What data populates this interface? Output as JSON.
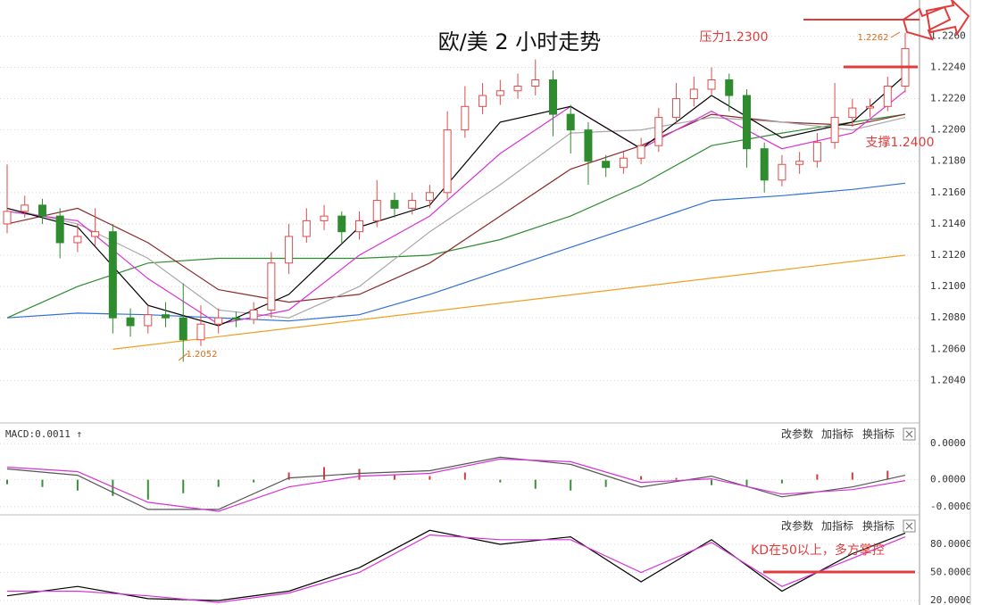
{
  "chart_data": [
    {
      "type": "candlestick",
      "title": "欧/美 2 小时走势",
      "open": [
        1.214,
        1.2148,
        1.2152,
        1.2145,
        1.2128,
        1.2132,
        1.2135,
        1.208,
        1.2075,
        1.2082,
        1.208,
        1.2066,
        1.2076,
        1.208,
        1.2079,
        1.2085,
        1.2115,
        1.2132,
        1.2142,
        1.2145,
        1.2135,
        1.2142,
        1.2155,
        1.215,
        1.2155,
        1.216,
        1.22,
        1.2215,
        1.2222,
        1.2225,
        1.2228,
        1.2232,
        1.221,
        1.22,
        1.218,
        1.2176,
        1.2182,
        1.219,
        1.2208,
        1.222,
        1.2226,
        1.2232,
        1.2222,
        1.2188,
        1.2168,
        1.2178,
        1.218,
        1.2192,
        1.2208,
        1.2214,
        1.2215,
        1.2228
      ],
      "high": [
        1.2178,
        1.2158,
        1.2156,
        1.215,
        1.214,
        1.215,
        1.214,
        1.2086,
        1.2088,
        1.209,
        1.2102,
        1.2088,
        1.2086,
        1.2084,
        1.209,
        1.2122,
        1.214,
        1.215,
        1.2152,
        1.2148,
        1.2148,
        1.2168,
        1.216,
        1.216,
        1.2165,
        1.2212,
        1.2228,
        1.223,
        1.2232,
        1.2236,
        1.2245,
        1.2238,
        1.2216,
        1.2205,
        1.2184,
        1.2186,
        1.2195,
        1.2214,
        1.223,
        1.2234,
        1.224,
        1.2236,
        1.2226,
        1.2192,
        1.2184,
        1.2186,
        1.2198,
        1.223,
        1.222,
        1.222,
        1.2234,
        1.2262
      ],
      "low": [
        1.2134,
        1.2144,
        1.214,
        1.2118,
        1.2122,
        1.2126,
        1.207,
        1.2068,
        1.207,
        1.2074,
        1.2052,
        1.2062,
        1.207,
        1.2074,
        1.2076,
        1.208,
        1.2108,
        1.2128,
        1.2136,
        1.2128,
        1.213,
        1.2138,
        1.2144,
        1.2146,
        1.215,
        1.2156,
        1.2195,
        1.221,
        1.2216,
        1.222,
        1.2222,
        1.2196,
        1.2185,
        1.2165,
        1.217,
        1.2172,
        1.2178,
        1.2186,
        1.2204,
        1.2215,
        1.2222,
        1.2212,
        1.2176,
        1.216,
        1.2164,
        1.2172,
        1.2176,
        1.2188,
        1.2202,
        1.2208,
        1.2212,
        1.2224
      ],
      "close": [
        1.2148,
        1.2152,
        1.2145,
        1.2128,
        1.2132,
        1.2135,
        1.208,
        1.2075,
        1.2082,
        1.208,
        1.2066,
        1.2076,
        1.208,
        1.2079,
        1.2085,
        1.2115,
        1.2132,
        1.2142,
        1.2145,
        1.2135,
        1.2142,
        1.2155,
        1.215,
        1.2155,
        1.216,
        1.22,
        1.2215,
        1.2222,
        1.2225,
        1.2228,
        1.2232,
        1.221,
        1.22,
        1.218,
        1.2176,
        1.2182,
        1.219,
        1.2208,
        1.222,
        1.2226,
        1.2232,
        1.2222,
        1.2188,
        1.2168,
        1.2178,
        1.218,
        1.2192,
        1.2208,
        1.2214,
        1.2215,
        1.2228,
        1.2252
      ],
      "up_color": "#e04a4a",
      "down_color": "#2e8b2e",
      "series": [
        {
          "color": "#f0a020",
          "x": [
            6,
            51
          ],
          "values": [
            1.206,
            1.212
          ]
        },
        {
          "color": "#2f6fd6",
          "x": [
            0,
            4,
            8,
            12,
            16,
            20,
            24,
            28,
            32,
            36,
            40,
            44,
            48,
            51
          ],
          "values": [
            1.208,
            1.2083,
            1.2082,
            1.208,
            1.2078,
            1.2082,
            1.2095,
            1.211,
            1.2125,
            1.214,
            1.2155,
            1.2158,
            1.2162,
            1.2166
          ]
        },
        {
          "color": "#2e8b2e",
          "x": [
            0,
            4,
            8,
            12,
            16,
            20,
            24,
            28,
            32,
            36,
            40,
            44,
            48,
            51
          ],
          "values": [
            1.208,
            1.21,
            1.2115,
            1.2118,
            1.2118,
            1.2118,
            1.212,
            1.213,
            1.2145,
            1.2165,
            1.219,
            1.2198,
            1.2205,
            1.221
          ]
        },
        {
          "color": "#8b2a2a",
          "x": [
            0,
            4,
            8,
            12,
            16,
            20,
            24,
            28,
            32,
            36,
            40,
            44,
            48,
            51
          ],
          "values": [
            1.214,
            1.215,
            1.2128,
            1.2098,
            1.209,
            1.2095,
            1.2115,
            1.2145,
            1.2175,
            1.219,
            1.221,
            1.2205,
            1.2203,
            1.221
          ]
        },
        {
          "color": "#a8a8a8",
          "x": [
            0,
            4,
            8,
            12,
            16,
            20,
            24,
            28,
            32,
            36,
            40,
            44,
            48,
            51
          ],
          "values": [
            1.215,
            1.214,
            1.2118,
            1.2085,
            1.208,
            1.21,
            1.2135,
            1.2165,
            1.2198,
            1.22,
            1.2208,
            1.2205,
            1.22,
            1.2208
          ]
        },
        {
          "color": "#d633d6",
          "x": [
            0,
            4,
            8,
            12,
            16,
            20,
            24,
            28,
            32,
            36,
            40,
            44,
            48,
            51
          ],
          "values": [
            1.2148,
            1.2142,
            1.2105,
            1.2076,
            1.2085,
            1.212,
            1.2145,
            1.2185,
            1.2215,
            1.2188,
            1.2212,
            1.2188,
            1.2198,
            1.2225
          ]
        },
        {
          "color": "#000000",
          "x": [
            0,
            4,
            8,
            12,
            16,
            20,
            24,
            28,
            32,
            36,
            40,
            44,
            48,
            51
          ],
          "values": [
            1.215,
            1.2138,
            1.2088,
            1.2075,
            1.2095,
            1.2138,
            1.2152,
            1.2205,
            1.2215,
            1.2188,
            1.2222,
            1.2195,
            1.2205,
            1.2235
          ]
        }
      ],
      "ylim": [
        1.2014,
        1.2283
      ],
      "yticks": [
        {
          "value": 1.226,
          "label": "1.2260"
        },
        {
          "value": 1.224,
          "label": "1.2240"
        },
        {
          "value": 1.222,
          "label": "1.2220"
        },
        {
          "value": 1.22,
          "label": "1.2200"
        },
        {
          "value": 1.218,
          "label": "1.2180"
        },
        {
          "value": 1.216,
          "label": "1.2160"
        },
        {
          "value": 1.214,
          "label": "1.2140"
        },
        {
          "value": 1.212,
          "label": "1.2120"
        },
        {
          "value": 1.21,
          "label": "1.2100"
        },
        {
          "value": 1.208,
          "label": "1.2080"
        },
        {
          "value": 1.206,
          "label": "1.2060"
        },
        {
          "value": 1.204,
          "label": "1.2040"
        }
      ],
      "grid": true,
      "annotations": [
        "1.2052",
        "1.2262",
        "压力1.2300",
        "支撑1.2400"
      ]
    },
    {
      "type": "line",
      "title": "MACD:0.0011 ↑",
      "buttons": [
        "改参数",
        "加指标",
        "换指标"
      ],
      "series": [
        {
          "type": "bar",
          "up_color": "#d23c3c",
          "down_color": "#3a8f3a",
          "x": [
            0,
            2,
            4,
            6,
            8,
            10,
            12,
            14,
            16,
            18,
            20,
            22,
            24,
            26,
            28,
            30,
            32,
            34,
            36,
            38,
            40,
            42,
            44,
            46,
            48,
            50
          ],
          "values": [
            -5e-06,
            -8e-06,
            -1.2e-05,
            -1.8e-05,
            -2.2e-05,
            -1.5e-05,
            -8e-06,
            -3e-06,
            8e-06,
            1.4e-05,
            1.2e-05,
            6e-06,
            4e-06,
            8e-06,
            -3e-06,
            -1e-05,
            -1.2e-05,
            -8e-06,
            4e-06,
            2e-06,
            -6e-06,
            -8e-06,
            -4e-06,
            6e-06,
            8e-06,
            1e-05
          ]
        },
        {
          "type": "line",
          "color": "#555555",
          "x": [
            0,
            4,
            8,
            12,
            16,
            20,
            24,
            28,
            32,
            36,
            40,
            44,
            48,
            51
          ],
          "values": [
            1.2e-05,
            5e-06,
            -3.3e-05,
            -3.3e-05,
            2e-06,
            7e-06,
            1e-05,
            2.5e-05,
            1.7e-05,
            -8e-06,
            4e-06,
            -1.9e-05,
            -8e-06,
            5e-06
          ]
        },
        {
          "type": "line",
          "color": "#d633d6",
          "x": [
            0,
            4,
            8,
            12,
            16,
            20,
            24,
            28,
            32,
            36,
            40,
            44,
            48,
            51
          ],
          "values": [
            1.4e-05,
            9e-06,
            -2.5e-05,
            -3.5e-05,
            -8e-06,
            4e-06,
            7e-06,
            2.3e-05,
            2e-05,
            -3e-06,
            1e-06,
            -1.6e-05,
            -1.1e-05,
            -1e-06
          ]
        }
      ],
      "ylim": [
        -3.8e-05,
        5.9e-05
      ],
      "yticks": [
        {
          "value": 4e-05,
          "label": "0.0000"
        },
        {
          "value": 0,
          "label": "0.0000"
        },
        {
          "value": -3e-05,
          "label": "-0.0000"
        }
      ],
      "grid": true
    },
    {
      "type": "line",
      "buttons": [
        "改参数",
        "加指标",
        "换指标"
      ],
      "series": [
        {
          "type": "line",
          "color": "#000000",
          "x": [
            0,
            4,
            8,
            12,
            16,
            20,
            24,
            28,
            32,
            36,
            40,
            44,
            48,
            51
          ],
          "values": [
            25,
            35,
            22,
            20,
            30,
            55,
            95,
            80,
            88,
            40,
            85,
            30,
            70,
            92
          ]
        },
        {
          "type": "line",
          "color": "#d633d6",
          "x": [
            0,
            4,
            8,
            12,
            16,
            20,
            24,
            28,
            32,
            36,
            40,
            44,
            48,
            51
          ],
          "values": [
            30,
            30,
            25,
            18,
            28,
            50,
            90,
            85,
            85,
            50,
            82,
            35,
            65,
            88
          ]
        }
      ],
      "ylim": [
        15.2,
        108.6
      ],
      "yticks": [
        {
          "value": 80,
          "label": "80.0000"
        },
        {
          "value": 50,
          "label": "50.0000"
        },
        {
          "value": 20,
          "label": "20.0000"
        }
      ],
      "grid": true,
      "annotations": [
        "KD在50以上，多方掌控"
      ]
    }
  ]
}
